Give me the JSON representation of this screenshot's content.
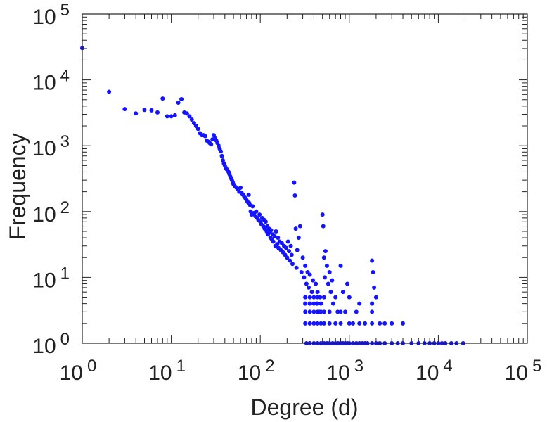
{
  "chart_data": {
    "type": "scatter",
    "title": "",
    "xlabel": "Degree (d)",
    "ylabel": "Frequency",
    "x_scale": "log",
    "y_scale": "log",
    "xlim": [
      1,
      100000
    ],
    "ylim": [
      1,
      100000
    ],
    "grid": false,
    "marker_color": "#1414ff",
    "x_ticks": [
      {
        "base": "10",
        "exp": "0"
      },
      {
        "base": "10",
        "exp": "1"
      },
      {
        "base": "10",
        "exp": "2"
      },
      {
        "base": "10",
        "exp": "3"
      },
      {
        "base": "10",
        "exp": "4"
      },
      {
        "base": "10",
        "exp": "5"
      }
    ],
    "y_ticks": [
      {
        "base": "10",
        "exp": "0"
      },
      {
        "base": "10",
        "exp": "1"
      },
      {
        "base": "10",
        "exp": "2"
      },
      {
        "base": "10",
        "exp": "3"
      },
      {
        "base": "10",
        "exp": "4"
      },
      {
        "base": "10",
        "exp": "5"
      }
    ],
    "points": [
      [
        1,
        30500
      ],
      [
        2,
        6600
      ],
      [
        3,
        3600
      ],
      [
        4,
        3100
      ],
      [
        5,
        3500
      ],
      [
        6,
        3450
      ],
      [
        7,
        3200
      ],
      [
        8,
        5200
      ],
      [
        9,
        2800
      ],
      [
        10,
        2800
      ],
      [
        11,
        2900
      ],
      [
        12,
        4500
      ],
      [
        13,
        5100
      ],
      [
        14,
        3200
      ],
      [
        15,
        3100
      ],
      [
        16,
        2800
      ],
      [
        17,
        2500
      ],
      [
        18,
        2200
      ],
      [
        19,
        2000
      ],
      [
        20,
        1800
      ],
      [
        21,
        1550
      ],
      [
        22,
        1450
      ],
      [
        23,
        1450
      ],
      [
        24,
        1400
      ],
      [
        25,
        1200
      ],
      [
        26,
        1150
      ],
      [
        27,
        1100
      ],
      [
        28,
        1050
      ],
      [
        29,
        1250
      ],
      [
        30,
        1450
      ],
      [
        31,
        1300
      ],
      [
        32,
        1200
      ],
      [
        33,
        1100
      ],
      [
        34,
        1000
      ],
      [
        35,
        900
      ],
      [
        36,
        820
      ],
      [
        37,
        700
      ],
      [
        38,
        600
      ],
      [
        39,
        540
      ],
      [
        40,
        500
      ],
      [
        41,
        460
      ],
      [
        42,
        440
      ],
      [
        43,
        420
      ],
      [
        44,
        400
      ],
      [
        45,
        370
      ],
      [
        46,
        340
      ],
      [
        47,
        320
      ],
      [
        48,
        300
      ],
      [
        49,
        280
      ],
      [
        50,
        260
      ],
      [
        52,
        240
      ],
      [
        54,
        230
      ],
      [
        56,
        220
      ],
      [
        58,
        200
      ],
      [
        60,
        230
      ],
      [
        62,
        190
      ],
      [
        64,
        180
      ],
      [
        66,
        170
      ],
      [
        68,
        160
      ],
      [
        70,
        150
      ],
      [
        72,
        140
      ],
      [
        74,
        180
      ],
      [
        75,
        135
      ],
      [
        77,
        125
      ],
      [
        78,
        100
      ],
      [
        80,
        90
      ],
      [
        82,
        120
      ],
      [
        85,
        95
      ],
      [
        88,
        85
      ],
      [
        90,
        100
      ],
      [
        92,
        80
      ],
      [
        95,
        75
      ],
      [
        98,
        90
      ],
      [
        100,
        70
      ],
      [
        102,
        65
      ],
      [
        105,
        80
      ],
      [
        108,
        60
      ],
      [
        110,
        75
      ],
      [
        112,
        55
      ],
      [
        115,
        70
      ],
      [
        118,
        50
      ],
      [
        120,
        60
      ],
      [
        122,
        45
      ],
      [
        125,
        55
      ],
      [
        128,
        48
      ],
      [
        130,
        40
      ],
      [
        132,
        52
      ],
      [
        135,
        38
      ],
      [
        138,
        45
      ],
      [
        140,
        35
      ],
      [
        145,
        42
      ],
      [
        148,
        30
      ],
      [
        150,
        50
      ],
      [
        155,
        32
      ],
      [
        158,
        40
      ],
      [
        160,
        28
      ],
      [
        165,
        35
      ],
      [
        170,
        26
      ],
      [
        175,
        33
      ],
      [
        180,
        24
      ],
      [
        185,
        30
      ],
      [
        190,
        22
      ],
      [
        195,
        28
      ],
      [
        200,
        20
      ],
      [
        205,
        35
      ],
      [
        210,
        25
      ],
      [
        215,
        18
      ],
      [
        220,
        30
      ],
      [
        225,
        22
      ],
      [
        230,
        16
      ],
      [
        240,
        275
      ],
      [
        245,
        175
      ],
      [
        250,
        55
      ],
      [
        255,
        14
      ],
      [
        260,
        26
      ],
      [
        270,
        40
      ],
      [
        280,
        60
      ],
      [
        290,
        12
      ],
      [
        300,
        20
      ],
      [
        310,
        10
      ],
      [
        320,
        15
      ],
      [
        330,
        8
      ],
      [
        340,
        12
      ],
      [
        350,
        7
      ],
      [
        360,
        11
      ],
      [
        380,
        6
      ],
      [
        390,
        9
      ],
      [
        400,
        5
      ],
      [
        420,
        8
      ],
      [
        430,
        4
      ],
      [
        440,
        6
      ],
      [
        460,
        3
      ],
      [
        470,
        5
      ],
      [
        480,
        4
      ],
      [
        500,
        90
      ],
      [
        510,
        60
      ],
      [
        520,
        20
      ],
      [
        530,
        10
      ],
      [
        540,
        25
      ],
      [
        560,
        15
      ],
      [
        580,
        8
      ],
      [
        600,
        12
      ],
      [
        620,
        6
      ],
      [
        640,
        9
      ],
      [
        660,
        4
      ],
      [
        700,
        5
      ],
      [
        740,
        3
      ],
      [
        800,
        15
      ],
      [
        850,
        6
      ],
      [
        900,
        3
      ],
      [
        950,
        8
      ],
      [
        1000,
        5
      ],
      [
        1100,
        2
      ],
      [
        1200,
        3
      ],
      [
        1300,
        4
      ],
      [
        1500,
        2
      ],
      [
        1800,
        18
      ],
      [
        1850,
        12
      ],
      [
        1900,
        7
      ],
      [
        2000,
        5
      ],
      [
        2200,
        2
      ],
      [
        2500,
        2
      ],
      [
        3000,
        2
      ],
      [
        4000,
        2
      ],
      [
        320,
        5
      ],
      [
        320,
        4
      ],
      [
        320,
        3
      ],
      [
        320,
        2
      ],
      [
        360,
        5
      ],
      [
        360,
        4
      ],
      [
        360,
        3
      ],
      [
        360,
        2
      ],
      [
        400,
        4
      ],
      [
        400,
        3
      ],
      [
        400,
        2
      ],
      [
        440,
        5
      ],
      [
        440,
        4
      ],
      [
        440,
        3
      ],
      [
        440,
        2
      ],
      [
        480,
        3
      ],
      [
        480,
        2
      ],
      [
        520,
        5
      ],
      [
        520,
        3
      ],
      [
        520,
        2
      ],
      [
        600,
        3
      ],
      [
        600,
        2
      ],
      [
        700,
        2
      ],
      [
        800,
        3
      ],
      [
        800,
        2
      ],
      [
        1000,
        2
      ],
      [
        1300,
        2
      ],
      [
        1800,
        3
      ],
      [
        1800,
        2
      ],
      [
        1800,
        4
      ],
      [
        330,
        1
      ],
      [
        360,
        1
      ],
      [
        400,
        1
      ],
      [
        440,
        1
      ],
      [
        480,
        1
      ],
      [
        520,
        1
      ],
      [
        560,
        1
      ],
      [
        600,
        1
      ],
      [
        650,
        1
      ],
      [
        700,
        1
      ],
      [
        750,
        1
      ],
      [
        800,
        1
      ],
      [
        850,
        1
      ],
      [
        900,
        1
      ],
      [
        950,
        1
      ],
      [
        1000,
        1
      ],
      [
        1100,
        1
      ],
      [
        1200,
        1
      ],
      [
        1300,
        1
      ],
      [
        1400,
        1
      ],
      [
        1500,
        1
      ],
      [
        1600,
        1
      ],
      [
        1800,
        1
      ],
      [
        2000,
        1
      ],
      [
        2200,
        1
      ],
      [
        2500,
        1
      ],
      [
        3000,
        1
      ],
      [
        3500,
        1
      ],
      [
        4000,
        1
      ],
      [
        5000,
        1
      ],
      [
        6000,
        1
      ],
      [
        7000,
        1
      ],
      [
        8000,
        1
      ],
      [
        9000,
        1
      ],
      [
        10000,
        1
      ],
      [
        11000,
        1
      ],
      [
        12000,
        1
      ],
      [
        14000,
        1
      ],
      [
        16000,
        1
      ],
      [
        19000,
        1
      ]
    ]
  }
}
